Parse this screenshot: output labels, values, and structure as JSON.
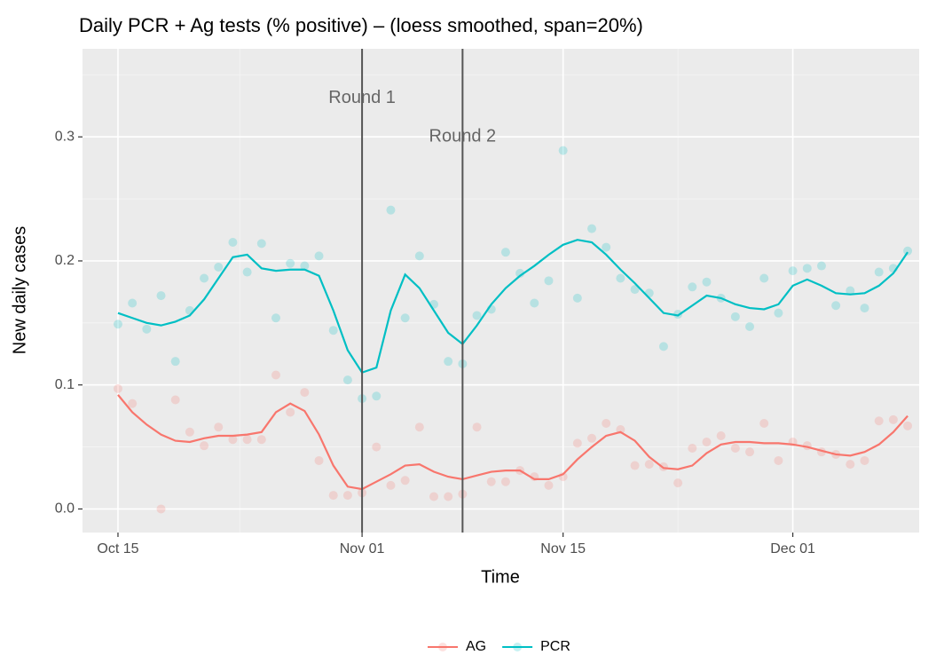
{
  "chart_data": {
    "type": "scatter",
    "title": "Daily PCR + Ag tests (% positive) – (loess smoothed, span=20%)",
    "x_label": "Time",
    "y_label": "New daily cases",
    "x": [
      0,
      1,
      2,
      3,
      4,
      5,
      6,
      7,
      8,
      9,
      10,
      11,
      12,
      13,
      14,
      15,
      16,
      17,
      18,
      19,
      20,
      21,
      22,
      23,
      24,
      25,
      26,
      27,
      28,
      29,
      30,
      31,
      32,
      33,
      34,
      35,
      36,
      37,
      38,
      39,
      40,
      41,
      42,
      43,
      44,
      45,
      46,
      47,
      48,
      49,
      50,
      51,
      52,
      53,
      54,
      55
    ],
    "xlim": [
      -2.47,
      55.8
    ],
    "xticks": [
      {
        "value": 0,
        "label": "Oct 15"
      },
      {
        "value": 17,
        "label": "Nov 01"
      },
      {
        "value": 31,
        "label": "Nov 15"
      },
      {
        "value": 47,
        "label": "Dec 01"
      }
    ],
    "minor_xticks": [
      8.5,
      24,
      39
    ],
    "ylim": [
      -0.019,
      0.371
    ],
    "yticks": [
      {
        "value": 0,
        "label": "0.0"
      },
      0.1,
      0.2,
      0.3
    ],
    "minor_yticks": [
      0.05,
      0.15,
      0.25,
      0.35
    ],
    "grid": true,
    "vlines": [
      17,
      24
    ],
    "annotations": [
      {
        "text": "Round 1",
        "x": 17,
        "y": 0.331
      },
      {
        "text": "Round 2",
        "x": 24,
        "y": 0.3
      }
    ],
    "legend": "bottom",
    "series": [
      {
        "name": "AG",
        "color": "#F8766D",
        "values": [
          0.097,
          0.085,
          null,
          0.0,
          0.088,
          0.062,
          0.051,
          0.066,
          0.056,
          0.056,
          0.056,
          0.108,
          0.078,
          0.094,
          0.039,
          0.011,
          0.011,
          0.013,
          0.05,
          0.019,
          0.023,
          0.066,
          0.01,
          0.01,
          0.012,
          0.066,
          0.022,
          0.022,
          0.031,
          0.026,
          0.019,
          0.026,
          0.053,
          0.057,
          0.069,
          0.064,
          0.035,
          0.036,
          0.034,
          0.021,
          0.049,
          0.054,
          0.059,
          0.049,
          0.046,
          0.069,
          0.039,
          0.054,
          0.051,
          0.046,
          0.044,
          0.036,
          0.039,
          0.071,
          0.072,
          0.067
        ],
        "smoothed": [
          0.092,
          0.078,
          0.068,
          0.06,
          0.055,
          0.054,
          0.057,
          0.059,
          0.059,
          0.06,
          0.062,
          0.078,
          0.085,
          0.079,
          0.06,
          0.035,
          0.018,
          0.016,
          0.022,
          0.028,
          0.035,
          0.036,
          0.03,
          0.026,
          0.024,
          0.027,
          0.03,
          0.031,
          0.031,
          0.024,
          0.024,
          0.028,
          0.04,
          0.05,
          0.059,
          0.062,
          0.055,
          0.042,
          0.033,
          0.032,
          0.035,
          0.045,
          0.052,
          0.054,
          0.054,
          0.053,
          0.053,
          0.052,
          0.05,
          0.047,
          0.044,
          0.043,
          0.046,
          0.052,
          0.062,
          0.075
        ]
      },
      {
        "name": "PCR",
        "color": "#00BFC4",
        "values": [
          0.149,
          0.166,
          0.145,
          0.172,
          0.119,
          0.16,
          0.186,
          0.195,
          0.215,
          0.191,
          0.214,
          0.154,
          0.198,
          0.196,
          0.204,
          0.144,
          0.104,
          0.089,
          0.091,
          0.241,
          0.154,
          0.204,
          0.165,
          0.119,
          0.117,
          0.156,
          0.161,
          0.207,
          0.19,
          0.166,
          0.184,
          0.289,
          0.17,
          0.226,
          0.211,
          0.186,
          0.177,
          0.174,
          0.131,
          0.157,
          0.179,
          0.183,
          0.17,
          0.155,
          0.147,
          0.186,
          0.158,
          0.192,
          0.194,
          0.196,
          0.164,
          0.176,
          0.162,
          0.191,
          0.194,
          0.208
        ],
        "smoothed": [
          0.158,
          0.154,
          0.15,
          0.148,
          0.151,
          0.156,
          0.169,
          0.186,
          0.203,
          0.205,
          0.194,
          0.192,
          0.193,
          0.193,
          0.188,
          0.16,
          0.128,
          0.11,
          0.114,
          0.16,
          0.189,
          0.178,
          0.16,
          0.142,
          0.133,
          0.148,
          0.165,
          0.178,
          0.188,
          0.196,
          0.205,
          0.213,
          0.217,
          0.215,
          0.205,
          0.193,
          0.182,
          0.17,
          0.158,
          0.156,
          0.164,
          0.172,
          0.17,
          0.165,
          0.162,
          0.161,
          0.165,
          0.18,
          0.185,
          0.18,
          0.174,
          0.173,
          0.174,
          0.18,
          0.19,
          0.207
        ]
      }
    ]
  }
}
